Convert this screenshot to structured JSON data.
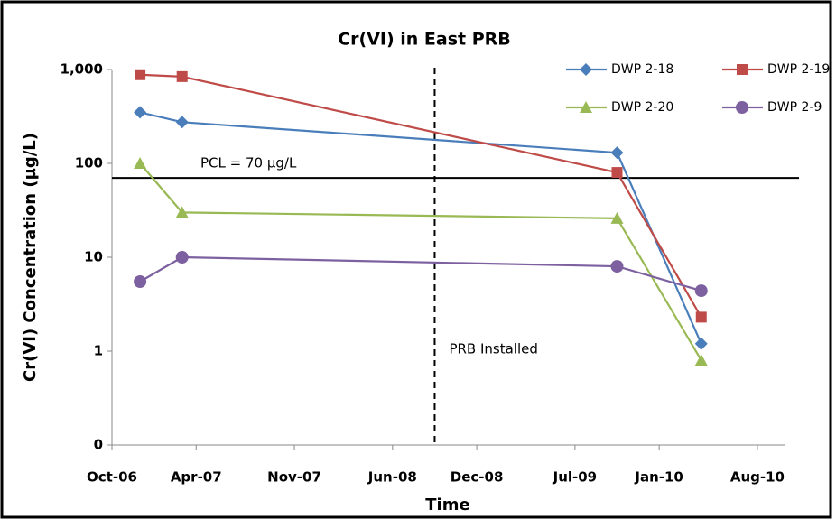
{
  "chart_data": {
    "type": "line",
    "title": "Cr(VI) in East PRB",
    "x_label": "Time",
    "y_label": "Cr(VI) Concentration (µg/L)",
    "x": [
      "2006-12",
      "2007-03",
      "2009-10",
      "2010-04"
    ],
    "series": [
      {
        "name": "DWP 2-18",
        "color": "#4a7ebb",
        "marker": "diamond",
        "values": [
          350,
          275,
          130,
          1.2
        ]
      },
      {
        "name": "DWP 2-19",
        "color": "#be4b48",
        "marker": "square",
        "values": [
          880,
          840,
          80,
          2.3
        ]
      },
      {
        "name": "DWP 2-20",
        "color": "#98b954",
        "marker": "triangle",
        "values": [
          100,
          30,
          26,
          0.8
        ]
      },
      {
        "name": "DWP 2-9",
        "color": "#7d60a0",
        "marker": "circle",
        "values": [
          5.5,
          10,
          8,
          4.4
        ]
      }
    ],
    "xlim": [
      "2006-10",
      "2010-10"
    ],
    "xticks": [
      {
        "value": "2006-10",
        "label": "Oct-06"
      },
      {
        "value": "2007-04",
        "label": "Apr-07"
      },
      {
        "value": "2007-11",
        "label": "Nov-07"
      },
      {
        "value": "2008-06",
        "label": "Jun-08"
      },
      {
        "value": "2008-12",
        "label": "Dec-08"
      },
      {
        "value": "2009-07",
        "label": "Jul-09"
      },
      {
        "value": "2010-01",
        "label": "Jan-10"
      },
      {
        "value": "2010-08",
        "label": "Aug-10"
      }
    ],
    "ylim": [
      0.1,
      1000
    ],
    "yticks": [
      {
        "value": 0.1,
        "label": "0"
      },
      1,
      10,
      100,
      {
        "value": 1000,
        "label": "1,000"
      }
    ],
    "log_y": true,
    "grid": false,
    "legend": "top-right",
    "reference_line": {
      "value": 70,
      "label": "PCL = 70 µg/L",
      "color": "#000000"
    },
    "event_line": {
      "x": "2008-09",
      "label": "PRB Installed",
      "color": "#000000"
    }
  }
}
